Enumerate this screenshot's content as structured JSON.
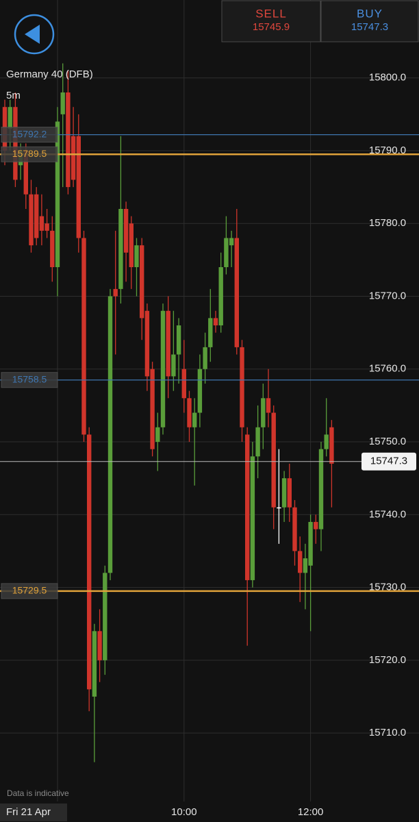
{
  "header": {
    "instrument": "Germany 40 (DFB)",
    "timeframe": "5m",
    "sell_label": "SELL",
    "sell_price": "15745.9",
    "buy_label": "BUY",
    "buy_price": "15747.3",
    "disclaimer": "Data is indicative",
    "date_label": "Fri 21 Apr"
  },
  "chart_data": {
    "type": "candlestick",
    "categories": [
      null,
      null,
      null,
      null,
      null,
      null,
      null,
      null,
      null,
      null,
      null,
      null,
      null,
      null,
      null,
      null,
      null,
      null,
      null,
      null,
      null,
      null,
      null,
      null,
      null,
      null,
      null,
      null,
      null,
      null,
      null,
      null,
      null,
      null,
      "10:00",
      null,
      null,
      null,
      null,
      null,
      null,
      null,
      null,
      null,
      null,
      null,
      null,
      null,
      null,
      null,
      null,
      null,
      null,
      null,
      null,
      null,
      null,
      null,
      "12:00",
      null,
      null,
      null,
      null
    ],
    "open": [
      15796,
      15793,
      15796,
      15788,
      15790,
      15784,
      15784,
      15781,
      15780,
      15779,
      15774,
      15795,
      15798,
      15792,
      15792,
      15778,
      15751,
      15715,
      15724,
      15720,
      15732,
      15771,
      15771,
      15782,
      15780,
      15774,
      15777,
      15768,
      15760,
      15750,
      15752,
      15768,
      15759,
      15762,
      15760,
      15756,
      15752,
      15754,
      15760,
      15763,
      15767,
      15766,
      15774,
      15777,
      15778,
      15763,
      15751,
      15731,
      15748,
      15752,
      15756,
      15754,
      15741,
      15741,
      15745,
      15741,
      15735,
      15732,
      15733,
      15739,
      15738,
      15749,
      15752
    ],
    "high": [
      15797,
      15797,
      15798,
      15791,
      15791,
      15786,
      15785,
      15784,
      15782,
      15781,
      15796,
      15802,
      15801,
      15796,
      15795,
      15779,
      15752,
      15725,
      15727,
      15733,
      15771,
      15779,
      15792,
      15783,
      15781,
      15778,
      15778,
      15769,
      15761,
      15754,
      15769,
      15770,
      15768,
      15767,
      15764,
      15757,
      15756,
      15762,
      15765,
      15771,
      15768,
      15776,
      15781,
      15779,
      15782,
      15764,
      15752,
      15750,
      15755,
      15758,
      15760,
      15755,
      15749,
      15746,
      15747,
      15742,
      15737,
      15736,
      15740,
      15740,
      15750,
      15756,
      15753
    ],
    "low": [
      15788,
      15790,
      15785,
      15786,
      15782,
      15776,
      15777,
      15777,
      15778,
      15772,
      15770,
      15785,
      15784,
      15785,
      15776,
      15750,
      15713,
      15706,
      15717,
      15718,
      15731,
      15762,
      15769,
      15772,
      15771,
      15770,
      15764,
      15757,
      15748,
      15746,
      15751,
      15756,
      15757,
      15758,
      15754,
      15750,
      15744,
      15752,
      15758,
      15761,
      15765,
      15765,
      15773,
      15774,
      15762,
      15750,
      15722,
      15730,
      15745,
      15749,
      15752,
      15738,
      15736,
      15739,
      15739,
      15733,
      15728,
      15727,
      15724,
      15736,
      15735,
      15748,
      15741
    ],
    "close": [
      15790,
      15796,
      15786,
      15790,
      15784,
      15777,
      15778,
      15779,
      15779,
      15774,
      15794,
      15798,
      15785,
      15786,
      15778,
      15751,
      15716,
      15724,
      15720,
      15732,
      15770,
      15770,
      15782,
      15776,
      15774,
      15777,
      15767,
      15759,
      15749,
      15752,
      15768,
      15759,
      15762,
      15766,
      15756,
      15752,
      15754,
      15760,
      15763,
      15767,
      15766,
      15774,
      15778,
      15778,
      15763,
      15752,
      15731,
      15748,
      15752,
      15756,
      15754,
      15741,
      15741,
      15745,
      15741,
      15735,
      15732,
      15734,
      15739,
      15738,
      15749,
      15751,
      15747
    ],
    "up_color": "#5a9e3a",
    "down_color": "#d0352b",
    "neutral_color": "#ffffff",
    "ylim": [
      15700.6,
      15810.7
    ],
    "yticks": [
      {
        "value": 15710,
        "label": "15710.0"
      },
      {
        "value": 15720,
        "label": "15720.0"
      },
      {
        "value": 15730,
        "label": "15730.0"
      },
      {
        "value": 15740,
        "label": "15740.0"
      },
      {
        "value": 15750,
        "label": "15750.0"
      },
      {
        "value": 15760,
        "label": "15760.0"
      },
      {
        "value": 15770,
        "label": "15770.0"
      },
      {
        "value": 15780,
        "label": "15780.0"
      },
      {
        "value": 15790,
        "label": "15790.0"
      },
      {
        "value": 15800,
        "label": "15800.0"
      }
    ],
    "grid": true,
    "levels": [
      {
        "value": 15792.2,
        "color": "#3f76b0"
      },
      {
        "value": 15789.5,
        "color": "#e0a23a"
      },
      {
        "value": 15758.5,
        "color": "#3f76b0"
      },
      {
        "value": 15729.5,
        "color": "#e0a23a"
      }
    ],
    "current_price": 15747.3
  }
}
